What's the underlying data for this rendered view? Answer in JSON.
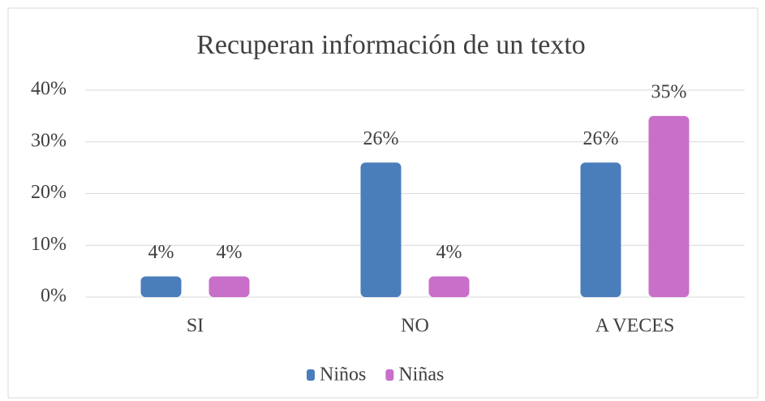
{
  "chart_data": {
    "type": "bar",
    "title": "Recuperan información de un texto",
    "categories": [
      "SI",
      "NO",
      "A VECES"
    ],
    "series": [
      {
        "name": "Niños",
        "color": "#4a7ebb",
        "values": [
          4,
          26,
          26
        ],
        "value_labels": [
          "4%",
          "26%",
          "26%"
        ]
      },
      {
        "name": "Niñas",
        "color": "#c86fc9",
        "values": [
          4,
          4,
          35
        ],
        "value_labels": [
          "4%",
          "4%",
          "35%"
        ]
      }
    ],
    "ylim": [
      0,
      40
    ],
    "yticks": [
      {
        "value": 0,
        "label": "0%"
      },
      {
        "value": 10,
        "label": "10%"
      },
      {
        "value": 20,
        "label": "20%"
      },
      {
        "value": 30,
        "label": "30%"
      },
      {
        "value": 40,
        "label": "40%"
      }
    ],
    "grid": true,
    "legend": "bottom"
  }
}
